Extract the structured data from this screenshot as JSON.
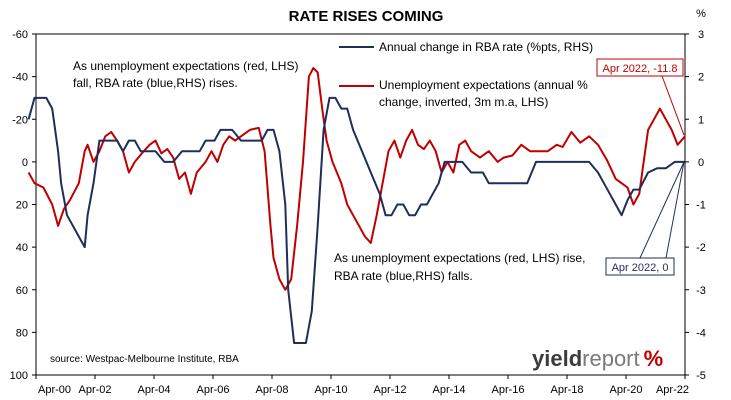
{
  "chart_data": {
    "type": "line",
    "title": "RATE RISES COMING",
    "left_axis": {
      "ticks": [
        -60,
        -40,
        -20,
        0,
        20,
        40,
        60,
        80,
        100
      ],
      "ticklabels": [
        "-60",
        "-40",
        "-20",
        "0",
        "20",
        "40",
        "60",
        "80",
        "100"
      ],
      "range": [
        -60,
        100
      ],
      "inverted": true
    },
    "right_axis": {
      "unit_label": "%",
      "ticks": [
        3,
        2,
        1,
        0,
        -1,
        -2,
        -3,
        -4,
        -5
      ],
      "ticklabels": [
        "3",
        "2",
        "1",
        "0",
        "-1",
        "-2",
        "-3",
        "-4",
        "-5"
      ],
      "range": [
        3,
        -5
      ]
    },
    "x_axis": {
      "range": [
        2000.25,
        2022.25
      ],
      "ticks": [
        2000.25,
        2002.25,
        2004.25,
        2006.25,
        2008.25,
        2010.25,
        2012.25,
        2014.25,
        2016.25,
        2018.25,
        2020.25,
        2022.25
      ],
      "ticklabels": [
        "Apr-00",
        "Apr-02",
        "Apr-04",
        "Apr-06",
        "Apr-08",
        "Apr-10",
        "Apr-12",
        "Apr-14",
        "Apr-16",
        "Apr-18",
        "Apr-20",
        "Apr-22"
      ]
    },
    "series": [
      {
        "name": "Annual change in RBA rate (%pts, RHS)",
        "color": "#1f2d5a",
        "axis": "right",
        "x": [
          2000.0,
          2000.2,
          2000.4,
          2000.6,
          2000.8,
          2001.0,
          2001.1,
          2001.3,
          2001.5,
          2001.7,
          2001.9,
          2002.0,
          2002.2,
          2002.4,
          2002.5,
          2002.8,
          2003.0,
          2003.2,
          2003.4,
          2003.6,
          2003.8,
          2004.0,
          2004.3,
          2004.6,
          2004.9,
          2005.2,
          2005.5,
          2005.8,
          2006.0,
          2006.3,
          2006.5,
          2006.7,
          2006.9,
          2007.2,
          2007.4,
          2007.6,
          2007.9,
          2008.1,
          2008.3,
          2008.5,
          2008.7,
          2008.8,
          2009.0,
          2009.2,
          2009.4,
          2009.6,
          2009.8,
          2010.0,
          2010.2,
          2010.4,
          2010.6,
          2010.8,
          2011.0,
          2011.3,
          2011.6,
          2011.9,
          2012.1,
          2012.3,
          2012.5,
          2012.7,
          2012.9,
          2013.1,
          2013.3,
          2013.5,
          2013.7,
          2013.9,
          2014.1,
          2014.4,
          2014.7,
          2015.0,
          2015.2,
          2015.4,
          2015.6,
          2015.8,
          2016.0,
          2016.3,
          2016.5,
          2016.7,
          2016.9,
          2017.2,
          2017.5,
          2017.8,
          2018.1,
          2018.4,
          2018.7,
          2019.0,
          2019.3,
          2019.5,
          2019.7,
          2019.9,
          2020.1,
          2020.3,
          2020.5,
          2020.7,
          2021.0,
          2021.3,
          2021.6,
          2021.9,
          2022.25
        ],
        "values": [
          1.0,
          1.5,
          1.5,
          1.5,
          1.25,
          0.25,
          -0.5,
          -1.25,
          -1.5,
          -1.75,
          -2.0,
          -1.25,
          -0.5,
          0.5,
          0.5,
          0.5,
          0.5,
          0.25,
          0.5,
          0.5,
          0.25,
          0.25,
          0.25,
          0.0,
          0.0,
          0.25,
          0.25,
          0.25,
          0.5,
          0.5,
          0.75,
          0.75,
          0.75,
          0.5,
          0.5,
          0.5,
          0.5,
          0.75,
          0.75,
          0.25,
          -1.0,
          -3.0,
          -4.25,
          -4.25,
          -4.25,
          -3.5,
          -1.5,
          0.75,
          1.5,
          1.5,
          1.25,
          1.25,
          0.75,
          0.25,
          -0.25,
          -0.75,
          -1.25,
          -1.25,
          -1.0,
          -1.0,
          -1.25,
          -1.25,
          -1.0,
          -1.0,
          -0.75,
          -0.5,
          0.0,
          0.0,
          0.0,
          -0.25,
          -0.25,
          -0.25,
          -0.5,
          -0.5,
          -0.5,
          -0.5,
          -0.5,
          -0.5,
          -0.5,
          0.0,
          0.0,
          0.0,
          0.0,
          0.0,
          0.0,
          0.0,
          -0.25,
          -0.5,
          -0.75,
          -1.0,
          -1.25,
          -0.9,
          -0.65,
          -0.65,
          -0.25,
          -0.15,
          -0.15,
          0.0,
          0.0
        ]
      },
      {
        "name": "Unemployment expectations (annual % change, inverted, 3m m.a, LHS)",
        "color": "#c00000",
        "axis": "left",
        "x": [
          2000.0,
          2000.2,
          2000.5,
          2000.8,
          2001.0,
          2001.2,
          2001.4,
          2001.7,
          2001.9,
          2002.0,
          2002.2,
          2002.4,
          2002.6,
          2002.8,
          2003.0,
          2003.2,
          2003.4,
          2003.6,
          2003.9,
          2004.1,
          2004.3,
          2004.5,
          2004.7,
          2004.9,
          2005.1,
          2005.3,
          2005.5,
          2005.7,
          2006.0,
          2006.2,
          2006.4,
          2006.6,
          2006.8,
          2007.0,
          2007.2,
          2007.5,
          2007.8,
          2008.0,
          2008.2,
          2008.3,
          2008.5,
          2008.7,
          2008.9,
          2009.1,
          2009.3,
          2009.5,
          2009.65,
          2009.8,
          2009.95,
          2010.1,
          2010.3,
          2010.6,
          2010.8,
          2011.0,
          2011.2,
          2011.4,
          2011.6,
          2011.8,
          2012.0,
          2012.2,
          2012.4,
          2012.6,
          2012.8,
          2013.0,
          2013.2,
          2013.4,
          2013.6,
          2013.8,
          2014.0,
          2014.2,
          2014.4,
          2014.6,
          2014.8,
          2015.0,
          2015.3,
          2015.6,
          2015.9,
          2016.1,
          2016.4,
          2016.7,
          2017.0,
          2017.3,
          2017.6,
          2017.9,
          2018.1,
          2018.4,
          2018.7,
          2019.0,
          2019.3,
          2019.6,
          2019.9,
          2020.1,
          2020.3,
          2020.5,
          2020.7,
          2020.8,
          2021.0,
          2021.2,
          2021.4,
          2021.6,
          2021.8,
          2022.0,
          2022.25
        ],
        "values": [
          5,
          10,
          12,
          20,
          30,
          22,
          18,
          10,
          -5,
          -8,
          0,
          -5,
          -12,
          -14,
          -10,
          -5,
          5,
          0,
          -5,
          -8,
          -10,
          -4,
          -6,
          -2,
          8,
          5,
          15,
          5,
          0,
          -5,
          0,
          -8,
          -12,
          -10,
          -12,
          -15,
          -16,
          -5,
          30,
          45,
          55,
          60,
          55,
          30,
          0,
          -40,
          -44,
          -42,
          -25,
          -10,
          0,
          10,
          20,
          25,
          30,
          35,
          38,
          25,
          10,
          -5,
          -10,
          -2,
          -10,
          -15,
          -8,
          -6,
          -10,
          -5,
          5,
          0,
          5,
          -8,
          -10,
          -5,
          -2,
          -5,
          0,
          -2,
          -3,
          -8,
          -5,
          -5,
          -5,
          -8,
          -7,
          -14,
          -9,
          -12,
          -8,
          -1,
          8,
          10,
          12,
          20,
          15,
          5,
          -15,
          -20,
          -25,
          -20,
          -15,
          -8,
          -12
        ]
      }
    ],
    "legend": [
      {
        "label": "Annual change in RBA rate (%pts, RHS)",
        "color": "#1f2d5a"
      },
      {
        "label_line1": "Unemployment expectations (annual %",
        "label_line2": "change, inverted, 3m m.a, LHS)",
        "color": "#c00000"
      }
    ],
    "legend_position": "top-right",
    "annotations": {
      "top_left_1": "As unemployment expectations (red, LHS)",
      "top_left_2": "fall, RBA rate (blue,RHS) rises.",
      "bottom_1": "As unemployment expectations (red, LHS) rise,",
      "bottom_2": "RBA rate (blue,RHS) falls.",
      "callout_red": "Apr 2022, -11.8",
      "callout_blue": "Apr 2022, 0"
    },
    "source": "source: Westpac-Melbourne Institute, RBA",
    "grid": false
  },
  "logo": {
    "part1": "yield",
    "part2": "report",
    "part3": "%",
    "pct_color": "#c00000"
  }
}
